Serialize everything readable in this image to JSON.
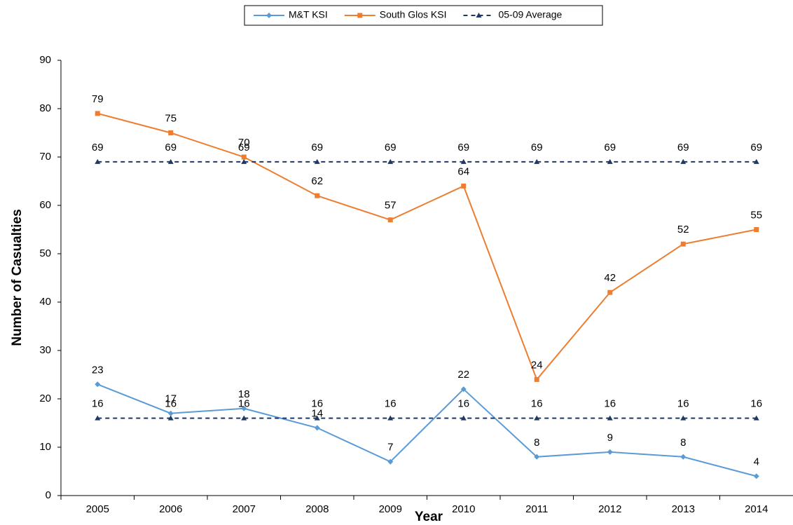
{
  "chart_data": {
    "type": "line",
    "x_label": "Year",
    "y_label": "Number of Casualties",
    "categories": [
      "2005",
      "2006",
      "2007",
      "2008",
      "2009",
      "2010",
      "2011",
      "2012",
      "2013",
      "2014"
    ],
    "ylim": [
      0,
      90
    ],
    "yticks": [
      0,
      10,
      20,
      30,
      40,
      50,
      60,
      70,
      80,
      90
    ],
    "grid": false,
    "legend": "top",
    "series": [
      {
        "name": "M&T KSI",
        "color": "#5b9bd5",
        "marker": "diamond",
        "dashed": false,
        "values": [
          23,
          17,
          18,
          14,
          7,
          22,
          8,
          9,
          8,
          4
        ]
      },
      {
        "name": "South Glos KSI",
        "color": "#ed7d31",
        "marker": "square",
        "dashed": false,
        "values": [
          79,
          75,
          70,
          62,
          57,
          64,
          24,
          42,
          52,
          55
        ]
      },
      {
        "name": "05-09 Average",
        "color": "#1f3864",
        "marker": "triangle",
        "dashed": true,
        "values": [
          69,
          69,
          69,
          69,
          69,
          69,
          69,
          69,
          69,
          69
        ]
      },
      {
        "color": "#1f3864",
        "marker": "triangle",
        "dashed": true,
        "values": [
          16,
          16,
          16,
          16,
          16,
          16,
          16,
          16,
          16,
          16
        ]
      }
    ]
  }
}
